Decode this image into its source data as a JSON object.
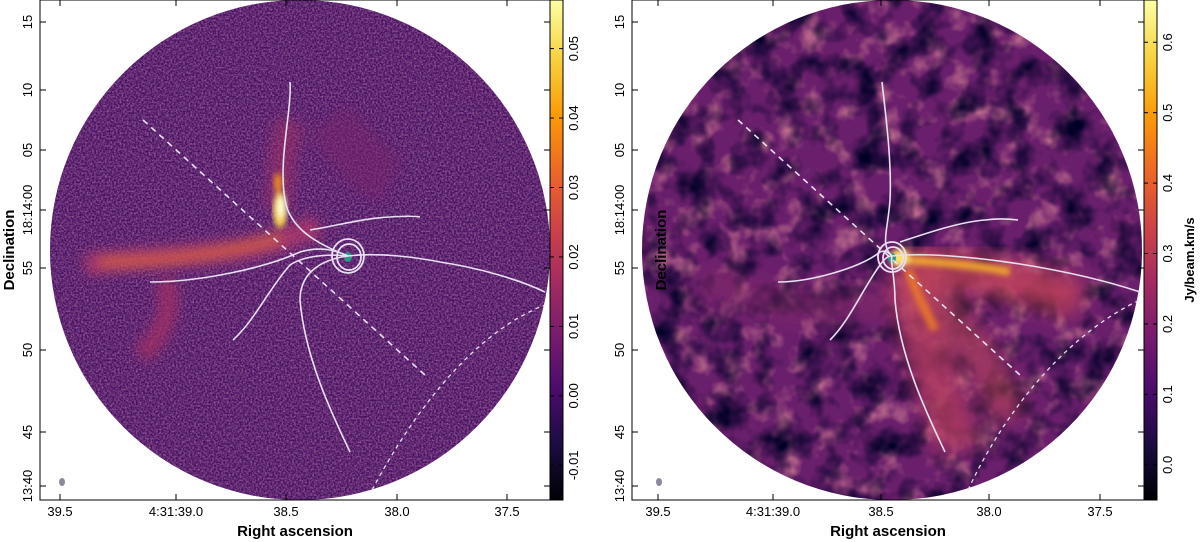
{
  "chart_data": [
    {
      "type": "heatmap",
      "panel": "left",
      "xlabel": "Right ascension",
      "ylabel": "Declination",
      "x_ticks": [
        "39.5",
        "4:31:39.0",
        "38.5",
        "38.0",
        "37.5"
      ],
      "y_ticks": [
        "13:40",
        "45",
        "50",
        "55",
        "18:14:00",
        "05",
        "10",
        "15"
      ],
      "colorbar": {
        "label": "",
        "ticks": [
          "-0.01",
          "0.00",
          "0.01",
          "0.02",
          "0.03",
          "0.04",
          "0.05"
        ],
        "range": [
          -0.015,
          0.057
        ],
        "colormap": "inferno"
      },
      "overlays": [
        "white streamer tracks",
        "dashed outflow axis",
        "dashed primary-beam arc",
        "white contours at source",
        "beam ellipse"
      ]
    },
    {
      "type": "heatmap",
      "panel": "right",
      "xlabel": "Right ascension",
      "ylabel": "Declination",
      "x_ticks": [
        "39.5",
        "4:31:39.0",
        "38.5",
        "38.0",
        "37.5"
      ],
      "y_ticks": [
        "13:40",
        "45",
        "50",
        "55",
        "18:14:00",
        "05",
        "10",
        "15"
      ],
      "colorbar": {
        "label": "Jy/beam.km/s",
        "ticks": [
          "0.0",
          "0.1",
          "0.2",
          "0.3",
          "0.4",
          "0.5",
          "0.6"
        ],
        "range": [
          -0.05,
          0.66
        ],
        "colormap": "inferno"
      },
      "overlays": [
        "white streamer tracks",
        "dashed outflow axis",
        "dashed primary-beam arc",
        "white contours at source",
        "beam ellipse"
      ]
    }
  ],
  "colors": {
    "inferno": [
      "#000004",
      "#1b0c41",
      "#4a0c6b",
      "#781c6d",
      "#a52c60",
      "#cf4446",
      "#ed6925",
      "#fb9b06",
      "#f7d13d",
      "#fcffa4"
    ],
    "overlay_line": "#e8e0f0",
    "beam": "#8a8a9a"
  }
}
